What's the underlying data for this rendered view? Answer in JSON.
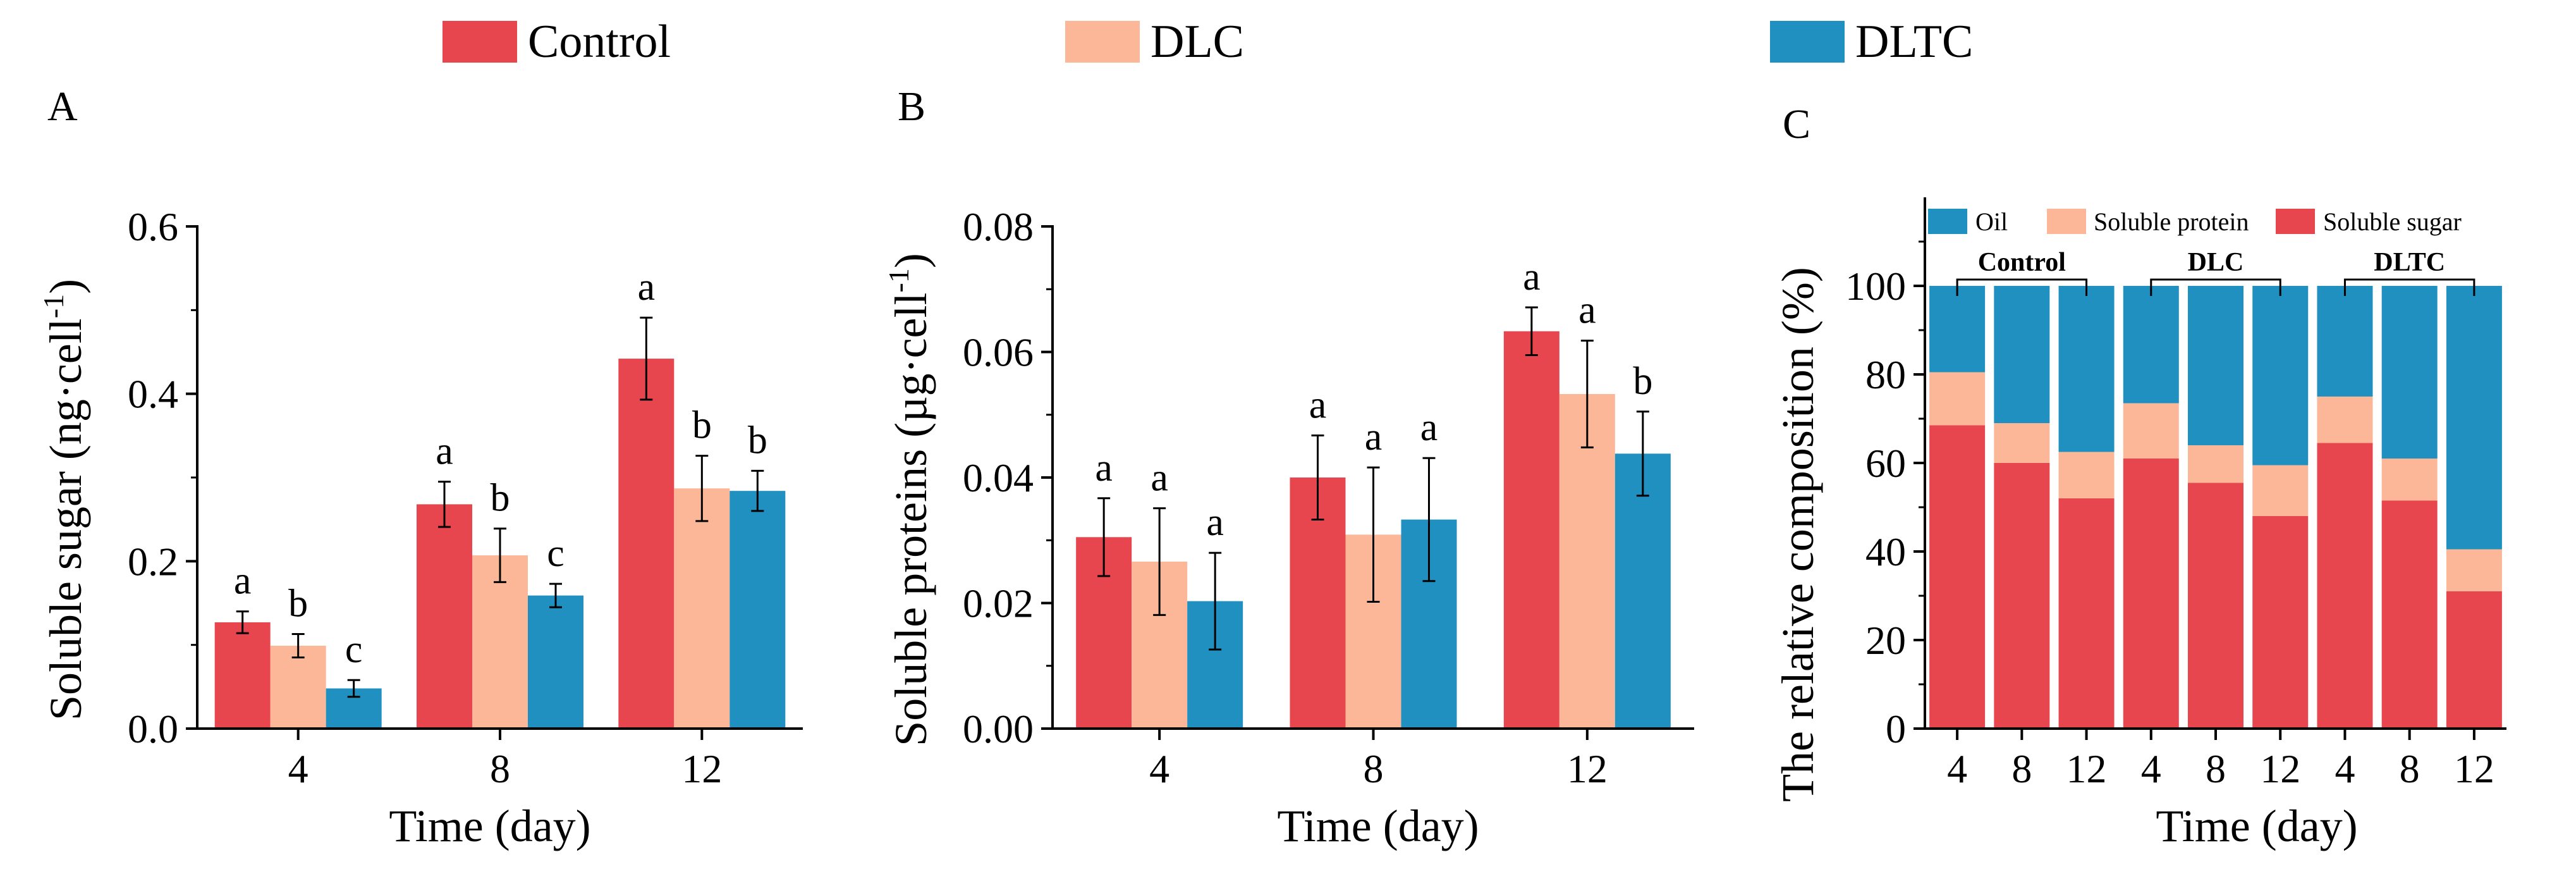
{
  "colors": {
    "control": "#E8464E",
    "dlc": "#FBB797",
    "dltc": "#1F90BF",
    "axis": "#000000"
  },
  "legend": [
    {
      "label": "Control",
      "color_key": "control"
    },
    {
      "label": "DLC",
      "color_key": "dlc"
    },
    {
      "label": "DLTC",
      "color_key": "dltc"
    }
  ],
  "chart_data": [
    {
      "panel": "A",
      "type": "bar",
      "categories": [
        "4",
        "8",
        "12"
      ],
      "xlabel": "Time (day)",
      "ylabel": "Soluble sugar (ng·cell",
      "ylabel_sup": "-1",
      "ylabel_close": ")",
      "ylim": [
        0,
        0.6
      ],
      "yticks": [
        "0.0",
        "0.2",
        "0.4",
        "0.6"
      ],
      "ytick_values": [
        0,
        0.2,
        0.4,
        0.6
      ],
      "series": [
        {
          "name": "Control",
          "color_key": "control",
          "values": [
            0.127,
            0.268,
            0.442
          ],
          "errors": [
            0.013,
            0.027,
            0.049
          ],
          "letters": [
            "a",
            "a",
            "a"
          ]
        },
        {
          "name": "DLC",
          "color_key": "dlc",
          "values": [
            0.099,
            0.207,
            0.287
          ],
          "errors": [
            0.014,
            0.032,
            0.039
          ],
          "letters": [
            "b",
            "b",
            "b"
          ]
        },
        {
          "name": "DLTC",
          "color_key": "dltc",
          "values": [
            0.048,
            0.159,
            0.284
          ],
          "errors": [
            0.01,
            0.014,
            0.024
          ],
          "letters": [
            "c",
            "c",
            "b"
          ]
        }
      ]
    },
    {
      "panel": "B",
      "type": "bar",
      "categories": [
        "4",
        "8",
        "12"
      ],
      "xlabel": "Time (day)",
      "ylabel": "Soluble proteins (µg·cell",
      "ylabel_sup": "-1",
      "ylabel_close": ")",
      "ylim": [
        0,
        0.08
      ],
      "yticks": [
        "0.00",
        "0.02",
        "0.04",
        "0.06",
        "0.08"
      ],
      "ytick_values": [
        0,
        0.02,
        0.04,
        0.06,
        0.08
      ],
      "series": [
        {
          "name": "Control",
          "color_key": "control",
          "values": [
            0.0305,
            0.04,
            0.0633
          ],
          "errors": [
            0.0062,
            0.0067,
            0.0038
          ],
          "letters": [
            "a",
            "a",
            "a"
          ]
        },
        {
          "name": "DLC",
          "color_key": "dlc",
          "values": [
            0.0266,
            0.0309,
            0.0533
          ],
          "errors": [
            0.0085,
            0.0107,
            0.0085
          ],
          "letters": [
            "a",
            "a",
            "a"
          ]
        },
        {
          "name": "DLTC",
          "color_key": "dltc",
          "values": [
            0.0203,
            0.0333,
            0.0438
          ],
          "errors": [
            0.0077,
            0.0098,
            0.0067
          ],
          "letters": [
            "a",
            "a",
            "b"
          ]
        }
      ]
    },
    {
      "panel": "C",
      "type": "bar",
      "stacked": true,
      "categories": [
        "4",
        "8",
        "12",
        "4",
        "8",
        "12",
        "4",
        "8",
        "12"
      ],
      "groups": [
        {
          "label": "Control",
          "start": 0,
          "end": 2
        },
        {
          "label": "DLC",
          "start": 3,
          "end": 5
        },
        {
          "label": "DLTC",
          "start": 6,
          "end": 8
        }
      ],
      "xlabel": "Time (day)",
      "ylabel": "The relative composition (%)",
      "ylim": [
        0,
        120
      ],
      "yticks": [
        "0",
        "20",
        "40",
        "60",
        "80",
        "100"
      ],
      "ytick_values": [
        0,
        20,
        40,
        60,
        80,
        100
      ],
      "legend": [
        "Oil",
        "Soluble protein",
        "Soluble sugar"
      ],
      "series": [
        {
          "name": "Soluble sugar",
          "color_key": "control",
          "values": [
            68.5,
            60,
            52,
            61,
            55.5,
            48,
            64.5,
            51.5,
            31
          ]
        },
        {
          "name": "Soluble protein",
          "color_key": "dlc",
          "values": [
            12,
            9,
            10.5,
            12.5,
            8.5,
            11.5,
            10.5,
            9.5,
            9.5
          ]
        },
        {
          "name": "Oil",
          "color_key": "dltc",
          "values": [
            19.5,
            31,
            37.5,
            26.5,
            36,
            40.5,
            25,
            39,
            59.5
          ]
        }
      ]
    }
  ]
}
